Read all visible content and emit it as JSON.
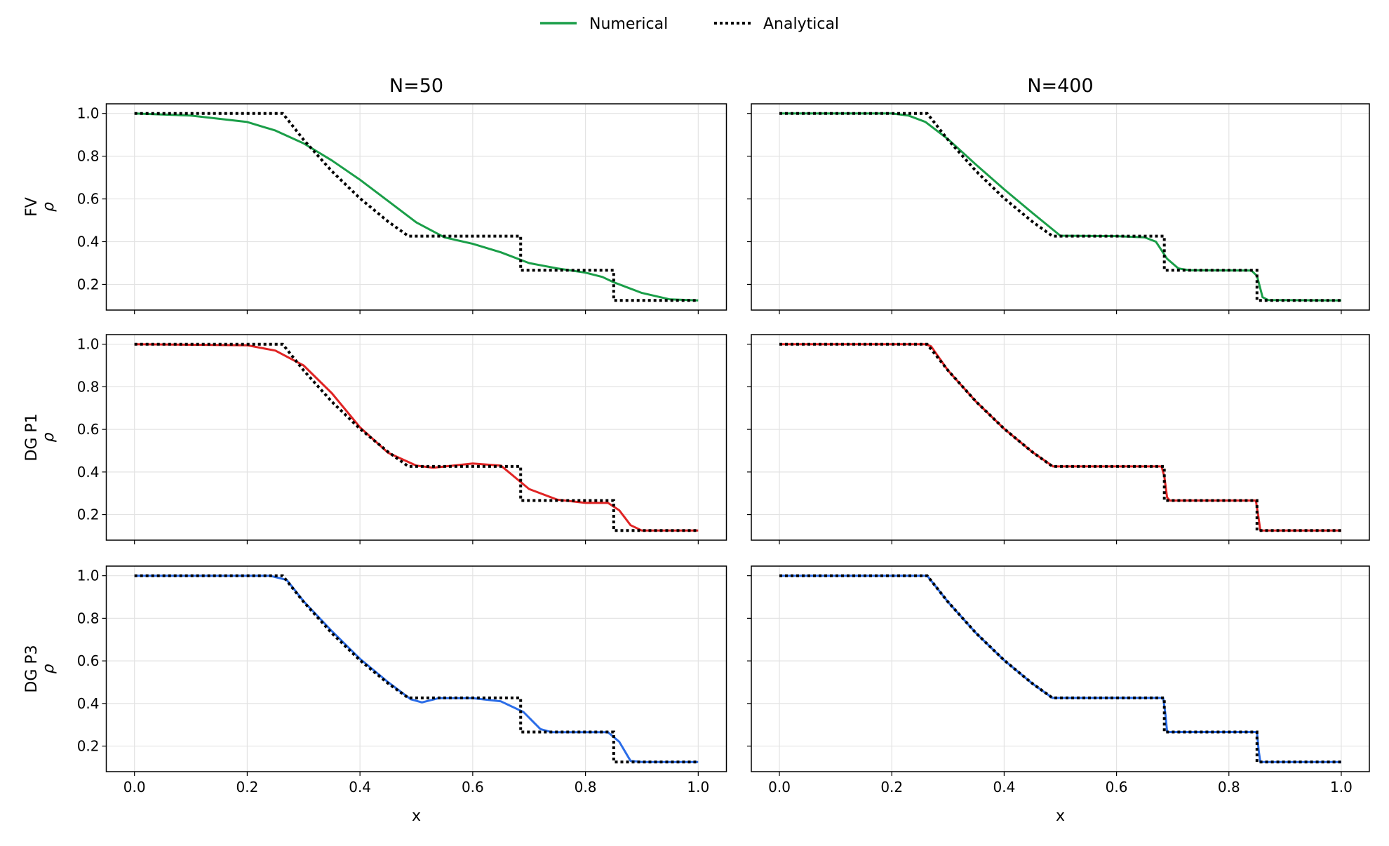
{
  "chart_data": {
    "type": "line",
    "legend": {
      "placement": "top-center",
      "entries": [
        {
          "label": "Numerical",
          "style": "solid",
          "color": "#1a9e48"
        },
        {
          "label": "Analytical",
          "style": "dotted",
          "color": "#000000"
        }
      ]
    },
    "column_titles": [
      "N=50",
      "N=400"
    ],
    "row_labels": [
      "FV",
      "DG P1",
      "DG P3"
    ],
    "ylabel": "ρ",
    "xlabel": "x",
    "xlim": [
      -0.05,
      1.05
    ],
    "ylim": [
      0.08,
      1.045
    ],
    "xticks": [
      "0.0",
      "0.2",
      "0.4",
      "0.6",
      "0.8",
      "1.0"
    ],
    "yticks": [
      "0.2",
      "0.4",
      "0.6",
      "0.8",
      "1.0"
    ],
    "grid": true,
    "analytical": {
      "name": "Analytical",
      "x": [
        0,
        0.263,
        0.3,
        0.35,
        0.4,
        0.45,
        0.486,
        0.685,
        0.685,
        0.85,
        0.85,
        1.0
      ],
      "y": [
        1.0,
        1.0,
        0.877,
        0.73,
        0.603,
        0.494,
        0.426,
        0.426,
        0.266,
        0.266,
        0.125,
        0.125
      ]
    },
    "panels": [
      {
        "row": 0,
        "col": 0,
        "color": "#1a9e48",
        "x": [
          0,
          0.1,
          0.2,
          0.25,
          0.3,
          0.35,
          0.4,
          0.45,
          0.5,
          0.55,
          0.6,
          0.65,
          0.7,
          0.75,
          0.8,
          0.83,
          0.85,
          0.9,
          0.95,
          1.0
        ],
        "y": [
          1.0,
          0.99,
          0.96,
          0.92,
          0.86,
          0.78,
          0.69,
          0.59,
          0.49,
          0.42,
          0.39,
          0.35,
          0.3,
          0.275,
          0.255,
          0.235,
          0.21,
          0.16,
          0.13,
          0.125
        ]
      },
      {
        "row": 0,
        "col": 1,
        "color": "#1a9e48",
        "x": [
          0,
          0.2,
          0.23,
          0.26,
          0.3,
          0.35,
          0.4,
          0.45,
          0.5,
          0.6,
          0.65,
          0.67,
          0.69,
          0.71,
          0.73,
          0.84,
          0.85,
          0.86,
          0.87,
          1.0
        ],
        "y": [
          1.0,
          1.0,
          0.99,
          0.96,
          0.88,
          0.76,
          0.645,
          0.535,
          0.428,
          0.426,
          0.42,
          0.4,
          0.32,
          0.275,
          0.266,
          0.265,
          0.24,
          0.14,
          0.127,
          0.125
        ]
      },
      {
        "row": 1,
        "col": 0,
        "color": "#e02424",
        "x": [
          0,
          0.2,
          0.25,
          0.3,
          0.35,
          0.4,
          0.45,
          0.5,
          0.53,
          0.6,
          0.65,
          0.7,
          0.75,
          0.8,
          0.84,
          0.86,
          0.88,
          0.9,
          1.0
        ],
        "y": [
          1.0,
          0.995,
          0.97,
          0.9,
          0.77,
          0.61,
          0.49,
          0.43,
          0.42,
          0.44,
          0.43,
          0.32,
          0.27,
          0.255,
          0.255,
          0.22,
          0.15,
          0.125,
          0.125
        ]
      },
      {
        "row": 1,
        "col": 1,
        "color": "#e02424",
        "x": [
          0,
          0.26,
          0.27,
          0.3,
          0.35,
          0.4,
          0.45,
          0.487,
          0.68,
          0.685,
          0.69,
          0.695,
          0.848,
          0.852,
          0.856,
          1.0
        ],
        "y": [
          1.0,
          1.0,
          0.99,
          0.877,
          0.73,
          0.603,
          0.494,
          0.426,
          0.426,
          0.38,
          0.28,
          0.266,
          0.266,
          0.2,
          0.125,
          0.125
        ]
      },
      {
        "row": 2,
        "col": 0,
        "color": "#2b6de8",
        "x": [
          0,
          0.24,
          0.27,
          0.3,
          0.35,
          0.4,
          0.45,
          0.49,
          0.51,
          0.54,
          0.6,
          0.65,
          0.69,
          0.72,
          0.74,
          0.84,
          0.86,
          0.88,
          0.9,
          1.0
        ],
        "y": [
          1.0,
          1.0,
          0.98,
          0.88,
          0.74,
          0.61,
          0.5,
          0.42,
          0.405,
          0.425,
          0.425,
          0.41,
          0.36,
          0.28,
          0.265,
          0.265,
          0.22,
          0.13,
          0.125,
          0.125
        ]
      },
      {
        "row": 2,
        "col": 1,
        "color": "#2b6de8",
        "x": [
          0,
          0.263,
          0.3,
          0.35,
          0.4,
          0.45,
          0.486,
          0.683,
          0.687,
          0.69,
          0.85,
          0.853,
          0.856,
          1.0
        ],
        "y": [
          1.0,
          1.0,
          0.877,
          0.73,
          0.603,
          0.494,
          0.426,
          0.426,
          0.35,
          0.266,
          0.266,
          0.18,
          0.125,
          0.125
        ]
      }
    ]
  }
}
